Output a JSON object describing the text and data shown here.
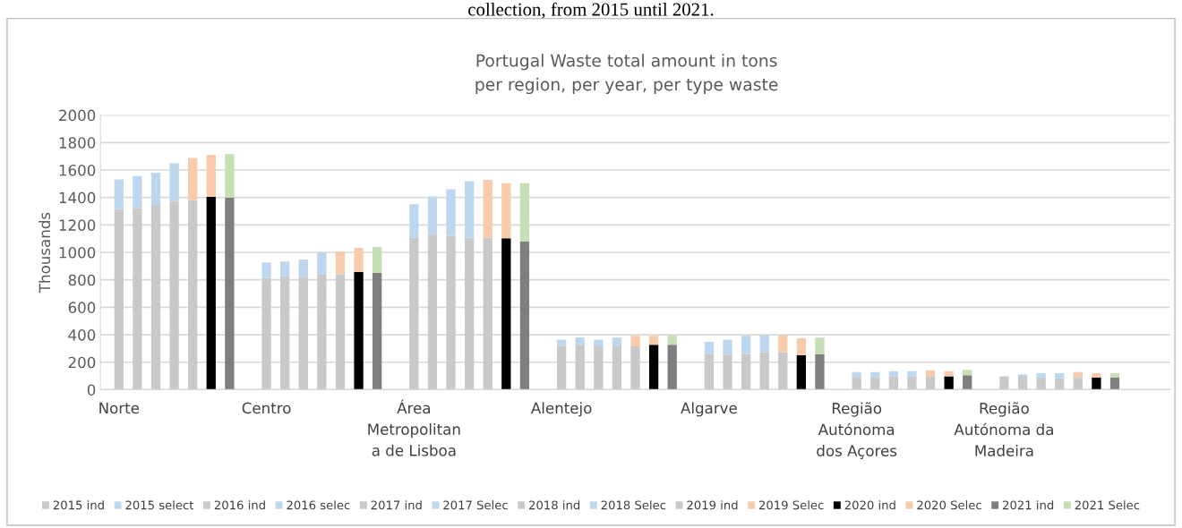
{
  "chart_data": {
    "type": "bar",
    "title": "Portugal Waste total amount in tons\nper region, per year, per type waste",
    "ylabel": "Thousands",
    "annotations": [
      "collection, from 2015 until 2021."
    ],
    "categories": [
      "Norte",
      null,
      null,
      null,
      null,
      null,
      null,
      null,
      "Centro",
      null,
      null,
      null,
      null,
      null,
      null,
      null,
      "Área\nMetropolitan\na de Lisboa",
      null,
      null,
      null,
      null,
      null,
      null,
      null,
      "Alentejo",
      null,
      null,
      null,
      null,
      null,
      null,
      null,
      "Algarve",
      null,
      null,
      null,
      null,
      null,
      null,
      null,
      "Região\nAutónoma\ndos Açores",
      null,
      null,
      null,
      null,
      null,
      null,
      null,
      "Região\nAutónoma da\nMadeira",
      null,
      null,
      null,
      null,
      null,
      null,
      null
    ],
    "stacked": true,
    "ylim": [
      0,
      2000
    ],
    "yticks": [
      0,
      200,
      400,
      600,
      800,
      1000,
      1200,
      1400,
      1600,
      1800,
      2000
    ],
    "grid": "y",
    "legend": "bottom",
    "series": [
      {
        "name": "2015 ind",
        "color": "#c9c9c9",
        "values": [
          1316,
          null,
          null,
          null,
          null,
          null,
          null,
          null,
          812,
          null,
          null,
          null,
          null,
          null,
          null,
          null,
          1106,
          null,
          null,
          null,
          null,
          null,
          null,
          null,
          320,
          null,
          null,
          null,
          null,
          null,
          null,
          null,
          261,
          null,
          null,
          null,
          null,
          null,
          null,
          null,
          92,
          null,
          null,
          null,
          null,
          null,
          null,
          null,
          98,
          null,
          null,
          null,
          null,
          null,
          null,
          null
        ]
      },
      {
        "name": "2015 select",
        "color": "#bdd7ee",
        "values": [
          216,
          null,
          null,
          null,
          null,
          null,
          null,
          null,
          114,
          null,
          null,
          null,
          null,
          null,
          null,
          null,
          245,
          null,
          null,
          null,
          null,
          null,
          null,
          null,
          44,
          null,
          null,
          null,
          null,
          null,
          null,
          null,
          88,
          null,
          null,
          null,
          null,
          null,
          null,
          null,
          37,
          null,
          null,
          null,
          null,
          null,
          null,
          null,
          null,
          null,
          null,
          null,
          null,
          null,
          null,
          null
        ]
      },
      {
        "name": "2016 ind",
        "color": "#c9c9c9",
        "values": [
          null,
          1325,
          null,
          null,
          null,
          null,
          null,
          null,
          null,
          827,
          null,
          null,
          null,
          null,
          null,
          null,
          null,
          1132,
          null,
          null,
          null,
          null,
          null,
          null,
          null,
          327,
          null,
          null,
          null,
          null,
          null,
          null,
          null,
          255,
          null,
          null,
          null,
          null,
          null,
          null,
          null,
          92,
          null,
          null,
          null,
          null,
          null,
          null,
          null,
          94,
          null,
          null,
          null,
          null,
          null,
          null
        ]
      },
      {
        "name": "2016 selec",
        "color": "#bdd7ee",
        "values": [
          null,
          231,
          null,
          null,
          null,
          null,
          null,
          null,
          null,
          106,
          null,
          null,
          null,
          null,
          null,
          null,
          null,
          275,
          null,
          null,
          null,
          null,
          null,
          null,
          null,
          54,
          null,
          null,
          null,
          null,
          null,
          null,
          null,
          109,
          null,
          null,
          null,
          null,
          null,
          null,
          null,
          37,
          null,
          null,
          null,
          null,
          null,
          null,
          null,
          17,
          null,
          null,
          null,
          null,
          null,
          null
        ]
      },
      {
        "name": "2017 ind",
        "color": "#c9c9c9",
        "values": [
          null,
          null,
          1346,
          null,
          null,
          null,
          null,
          null,
          null,
          null,
          820,
          null,
          null,
          null,
          null,
          null,
          null,
          null,
          1121,
          null,
          null,
          null,
          null,
          null,
          null,
          null,
          316,
          null,
          null,
          null,
          null,
          null,
          null,
          null,
          261,
          null,
          null,
          null,
          null,
          null,
          null,
          null,
          98,
          null,
          null,
          null,
          null,
          null,
          null,
          null,
          87,
          null,
          null,
          null,
          null,
          null
        ]
      },
      {
        "name": "2017 Selec",
        "color": "#bdd7ee",
        "values": [
          null,
          null,
          234,
          null,
          null,
          null,
          null,
          null,
          null,
          null,
          128,
          null,
          null,
          null,
          null,
          null,
          null,
          null,
          338,
          null,
          null,
          null,
          null,
          null,
          null,
          null,
          48,
          null,
          null,
          null,
          null,
          null,
          null,
          null,
          131,
          null,
          null,
          null,
          null,
          null,
          null,
          null,
          37,
          null,
          null,
          null,
          null,
          null,
          null,
          null,
          33,
          null,
          null,
          null,
          null,
          null
        ]
      },
      {
        "name": "2018 ind",
        "color": "#c9c9c9",
        "values": [
          null,
          null,
          null,
          1374,
          null,
          null,
          null,
          null,
          null,
          null,
          null,
          842,
          null,
          null,
          null,
          null,
          null,
          null,
          null,
          1106,
          null,
          null,
          null,
          null,
          null,
          null,
          null,
          320,
          null,
          null,
          null,
          null,
          null,
          null,
          null,
          272,
          null,
          null,
          null,
          null,
          null,
          null,
          null,
          96,
          null,
          null,
          null,
          null,
          null,
          null,
          null,
          85,
          null,
          null,
          null,
          null
        ]
      },
      {
        "name": "2018 Selec",
        "color": "#bdd7ee",
        "values": [
          null,
          null,
          null,
          275,
          null,
          null,
          null,
          null,
          null,
          null,
          null,
          158,
          null,
          null,
          null,
          null,
          null,
          null,
          null,
          413,
          null,
          null,
          null,
          null,
          null,
          null,
          null,
          59,
          null,
          null,
          null,
          null,
          null,
          null,
          null,
          124,
          null,
          null,
          null,
          null,
          null,
          null,
          null,
          39,
          null,
          null,
          null,
          null,
          null,
          null,
          null,
          35,
          null,
          null,
          null,
          null
        ]
      },
      {
        "name": "2019 ind",
        "color": "#c9c9c9",
        "values": [
          null,
          null,
          null,
          null,
          1381,
          null,
          null,
          null,
          null,
          null,
          null,
          null,
          840,
          null,
          null,
          null,
          null,
          null,
          null,
          null,
          1106,
          null,
          null,
          null,
          null,
          null,
          null,
          null,
          316,
          null,
          null,
          null,
          null,
          null,
          null,
          null,
          272,
          null,
          null,
          null,
          null,
          null,
          null,
          null,
          94,
          null,
          null,
          null,
          null,
          null,
          null,
          null,
          92,
          null,
          null,
          null
        ]
      },
      {
        "name": "2019 Selec",
        "color": "#f8cbad",
        "values": [
          null,
          null,
          null,
          null,
          307,
          null,
          null,
          null,
          null,
          null,
          null,
          null,
          166,
          null,
          null,
          null,
          null,
          null,
          null,
          null,
          422,
          null,
          null,
          null,
          null,
          null,
          null,
          null,
          76,
          null,
          null,
          null,
          null,
          null,
          null,
          null,
          124,
          null,
          null,
          null,
          null,
          null,
          null,
          null,
          48,
          null,
          null,
          null,
          null,
          null,
          null,
          null,
          37,
          null,
          null,
          null
        ]
      },
      {
        "name": "2020 ind",
        "color": "#000000",
        "values": [
          null,
          null,
          null,
          null,
          null,
          1405,
          null,
          null,
          null,
          null,
          null,
          null,
          null,
          857,
          null,
          null,
          null,
          null,
          null,
          null,
          null,
          1102,
          null,
          null,
          null,
          null,
          null,
          null,
          null,
          327,
          null,
          null,
          null,
          null,
          null,
          null,
          null,
          251,
          null,
          null,
          null,
          null,
          null,
          null,
          null,
          98,
          null,
          null,
          null,
          null,
          null,
          null,
          null,
          87,
          null,
          null
        ]
      },
      {
        "name": "2020 Selec",
        "color": "#f8cbad",
        "values": [
          null,
          null,
          null,
          null,
          null,
          305,
          null,
          null,
          null,
          null,
          null,
          null,
          null,
          175,
          null,
          null,
          null,
          null,
          null,
          null,
          null,
          402,
          null,
          null,
          null,
          null,
          null,
          null,
          null,
          65,
          null,
          null,
          null,
          null,
          null,
          null,
          null,
          124,
          null,
          null,
          null,
          null,
          null,
          null,
          null,
          37,
          null,
          null,
          null,
          null,
          null,
          null,
          null,
          33,
          null,
          null
        ]
      },
      {
        "name": "2021 ind",
        "color": "#7f7f7f",
        "values": [
          null,
          null,
          null,
          null,
          null,
          null,
          1400,
          null,
          null,
          null,
          null,
          null,
          null,
          null,
          851,
          null,
          null,
          null,
          null,
          null,
          null,
          null,
          1078,
          null,
          null,
          null,
          null,
          null,
          null,
          null,
          327,
          null,
          null,
          null,
          null,
          null,
          null,
          null,
          257,
          null,
          null,
          null,
          null,
          null,
          null,
          null,
          105,
          null,
          null,
          null,
          null,
          null,
          null,
          null,
          87,
          null
        ]
      },
      {
        "name": "2021 Selec",
        "color": "#c5e0b4",
        "values": [
          null,
          null,
          null,
          null,
          null,
          null,
          316,
          null,
          null,
          null,
          null,
          null,
          null,
          null,
          188,
          null,
          null,
          null,
          null,
          null,
          null,
          null,
          426,
          null,
          null,
          null,
          null,
          null,
          null,
          null,
          69,
          null,
          null,
          null,
          null,
          null,
          null,
          null,
          122,
          null,
          null,
          null,
          null,
          null,
          null,
          null,
          39,
          null,
          null,
          null,
          null,
          null,
          null,
          null,
          33,
          null
        ]
      }
    ]
  }
}
